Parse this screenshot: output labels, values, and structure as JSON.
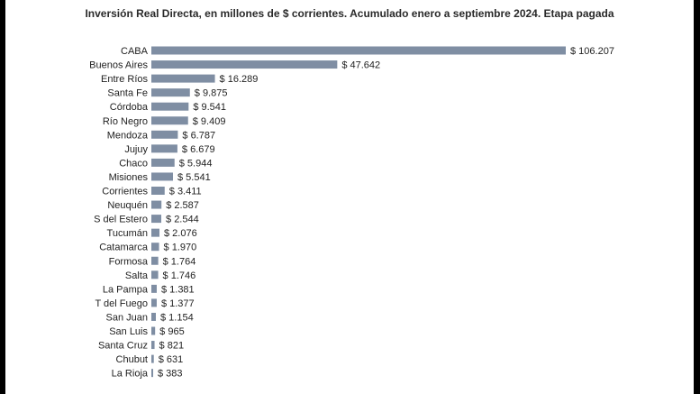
{
  "colors": {
    "bar": "#7f8ea3",
    "frame": "#000000",
    "panel": "#ffffff",
    "text": "#222222"
  },
  "chart_data": {
    "type": "bar",
    "orientation": "horizontal",
    "title": "Inversión Real Directa, en millones de $ corrientes. Acumulado enero a septiembre 2024. Etapa pagada",
    "xlabel": "",
    "ylabel": "",
    "grid": false,
    "legend": "none",
    "value_prefix": "$ ",
    "categories": [
      "CABA",
      "Buenos Aires",
      "Entre Ríos",
      "Santa Fe",
      "Córdoba",
      "Río Negro",
      "Mendoza",
      "Jujuy",
      "Chaco",
      "Misiones",
      "Corrientes",
      "Neuquén",
      "S del Estero",
      "Tucumán",
      "Catamarca",
      "Formosa",
      "Salta",
      "La Pampa",
      "T del Fuego",
      "San Juan",
      "San Luis",
      "Santa Cruz",
      "Chubut",
      "La Rioja"
    ],
    "values": [
      106207,
      47642,
      16289,
      9875,
      9541,
      9409,
      6787,
      6679,
      5944,
      5541,
      3411,
      2587,
      2544,
      2076,
      1970,
      1764,
      1746,
      1381,
      1377,
      1154,
      965,
      821,
      631,
      383
    ],
    "value_labels": [
      "$ 106.207",
      "$ 47.642",
      "$ 16.289",
      "$ 9.875",
      "$ 9.541",
      "$ 9.409",
      "$ 6.787",
      "$ 6.679",
      "$ 5.944",
      "$ 5.541",
      "$ 3.411",
      "$ 2.587",
      "$ 2.544",
      "$ 2.076",
      "$ 1.970",
      "$ 1.764",
      "$ 1.746",
      "$ 1.381",
      "$ 1.377",
      "$ 1.154",
      "$ 965",
      "$ 821",
      "$ 631",
      "$ 383"
    ]
  }
}
